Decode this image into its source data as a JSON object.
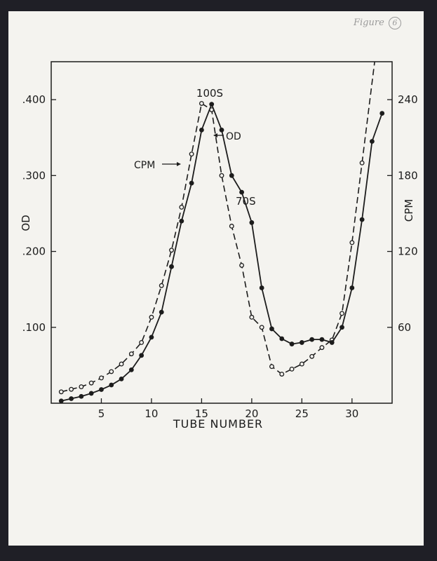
{
  "corner_note": "Figure",
  "figure_number": "6",
  "chart_data": {
    "type": "line",
    "title": "",
    "xlabel": "TUBE NUMBER",
    "ylabel": "OD",
    "y2label": "CPM",
    "xlim": [
      0,
      34
    ],
    "ylim": [
      0,
      0.45
    ],
    "y2lim": [
      0,
      270
    ],
    "x_ticks": [
      5,
      10,
      15,
      20,
      25,
      30
    ],
    "x_tick_labels": [
      "5",
      "10",
      "15",
      "20",
      "25",
      "30"
    ],
    "y_ticks": [
      0.1,
      0.2,
      0.3,
      0.4
    ],
    "y_tick_labels": [
      ".100",
      ".200",
      ".300",
      ".400"
    ],
    "y2_ticks": [
      60,
      120,
      180,
      240
    ],
    "y2_tick_labels": [
      "60",
      "120",
      "180",
      "240"
    ],
    "grid": false,
    "legend": "none",
    "series": [
      {
        "name": "OD",
        "axis": "left",
        "style": "solid",
        "marker": "filled-circle",
        "x": [
          1,
          2,
          3,
          4,
          5,
          6,
          7,
          8,
          9,
          10,
          11,
          12,
          13,
          14,
          15,
          16,
          17,
          18,
          19,
          20,
          21,
          22,
          23,
          24,
          25,
          26,
          27,
          28,
          29,
          30,
          31,
          32,
          33
        ],
        "values": [
          0.003,
          0.006,
          0.009,
          0.013,
          0.018,
          0.024,
          0.032,
          0.044,
          0.063,
          0.087,
          0.12,
          0.18,
          0.24,
          0.29,
          0.36,
          0.394,
          0.36,
          0.3,
          0.278,
          0.238,
          0.152,
          0.098,
          0.085,
          0.078,
          0.08,
          0.084,
          0.084,
          0.08,
          0.1,
          0.152,
          0.242,
          0.345,
          0.382
        ]
      },
      {
        "name": "CPM",
        "axis": "right",
        "style": "dashed",
        "marker": "open-circle",
        "x": [
          1,
          2,
          3,
          4,
          5,
          6,
          7,
          8,
          9,
          10,
          11,
          12,
          13,
          14,
          15,
          16,
          17,
          18,
          19,
          20,
          21,
          22,
          23,
          24,
          25,
          26,
          27,
          28,
          29,
          30,
          31
        ],
        "values": [
          9,
          11,
          13,
          16,
          20,
          25,
          31,
          39,
          48,
          68,
          93,
          121,
          155,
          197,
          237,
          232,
          180,
          140,
          109,
          68,
          60,
          29,
          23,
          27,
          31,
          37,
          44,
          50,
          71,
          127,
          190
        ]
      }
    ],
    "annotations": [
      "100S",
      "70S"
    ],
    "series_labels": [
      "OD",
      "CPM"
    ]
  }
}
